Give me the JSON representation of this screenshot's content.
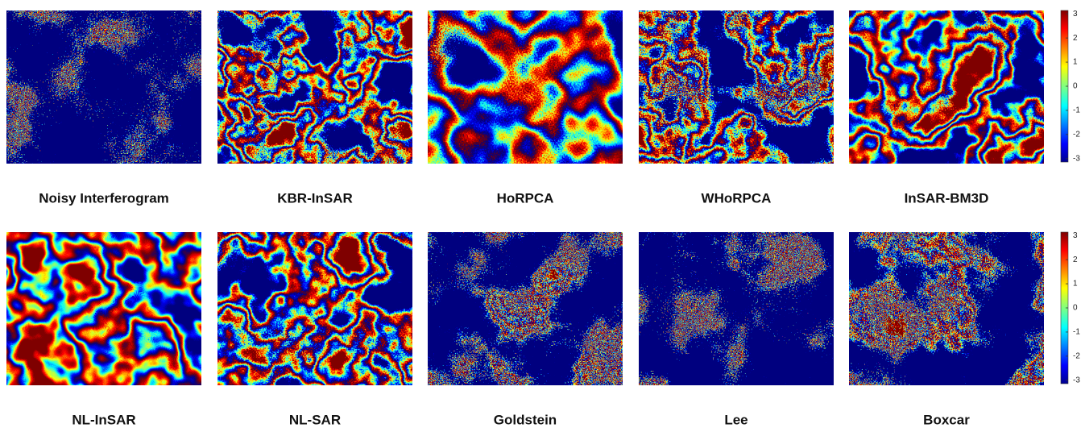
{
  "rows": [
    {
      "panels": [
        {
          "label": "Noisy Interferogram"
        },
        {
          "label": "KBR-InSAR"
        },
        {
          "label": "HoRPCA"
        },
        {
          "label": "WHoRPCA"
        },
        {
          "label": "InSAR-BM3D"
        }
      ],
      "colorbar": {
        "lim": [
          -3.14,
          3.14
        ],
        "ticks": [
          3,
          2,
          1,
          0,
          -1,
          -2,
          -3
        ]
      }
    },
    {
      "panels": [
        {
          "label": "NL-InSAR"
        },
        {
          "label": "NL-SAR"
        },
        {
          "label": "Goldstein"
        },
        {
          "label": "Lee"
        },
        {
          "label": "Boxcar"
        }
      ],
      "colorbar": {
        "lim": [
          -3.14,
          3.14
        ],
        "ticks": [
          3,
          2,
          1,
          0,
          -1,
          -2,
          -3
        ]
      }
    }
  ]
}
